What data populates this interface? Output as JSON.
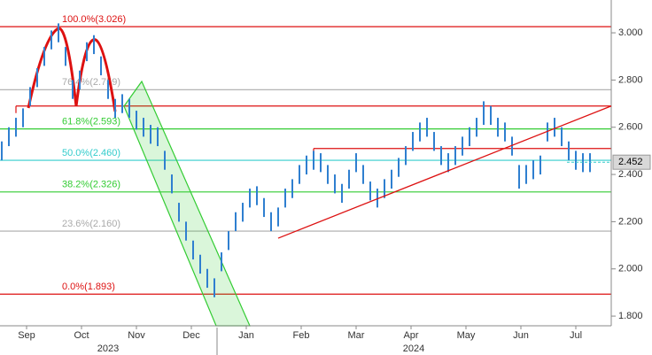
{
  "chart_data": {
    "type": "ohlc_bar",
    "color": "#2f7fd0",
    "categories": [
      "Sep",
      "Oct",
      "Nov",
      "Dec",
      "Jan",
      "Feb",
      "Mar",
      "Apr",
      "May",
      "Jun",
      "Jul"
    ],
    "years": [
      "2023",
      "2024"
    ],
    "high": [
      2.54,
      2.6,
      2.64,
      2.68,
      2.77,
      2.85,
      2.94,
      3.01,
      3.04,
      2.94,
      2.8,
      2.84,
      2.96,
      2.99,
      2.9,
      2.8,
      2.72,
      2.74,
      2.72,
      2.67,
      2.64,
      2.61,
      2.6,
      2.5,
      2.4,
      2.28,
      2.2,
      2.12,
      2.06,
      2.0,
      1.96,
      2.07,
      2.16,
      2.24,
      2.28,
      2.34,
      2.35,
      2.3,
      2.24,
      2.26,
      2.34,
      2.38,
      2.44,
      2.48,
      2.5,
      2.49,
      2.44,
      2.4,
      2.36,
      2.42,
      2.49,
      2.44,
      2.37,
      2.34,
      2.38,
      2.42,
      2.47,
      2.52,
      2.58,
      2.62,
      2.64,
      2.58,
      2.52,
      2.49,
      2.52,
      2.56,
      2.6,
      2.64,
      2.71,
      2.69,
      2.64,
      2.62,
      2.56,
      2.44,
      2.44,
      2.46,
      2.48,
      2.62,
      2.64,
      2.6,
      2.54,
      2.5,
      2.49,
      2.49
    ],
    "low": [
      2.46,
      2.52,
      2.56,
      2.6,
      2.69,
      2.77,
      2.86,
      2.93,
      2.96,
      2.86,
      2.72,
      2.76,
      2.88,
      2.91,
      2.82,
      2.72,
      2.64,
      2.66,
      2.64,
      2.59,
      2.56,
      2.53,
      2.52,
      2.42,
      2.32,
      2.2,
      2.12,
      2.04,
      1.98,
      1.92,
      1.88,
      1.99,
      2.08,
      2.16,
      2.2,
      2.26,
      2.27,
      2.22,
      2.16,
      2.18,
      2.26,
      2.3,
      2.36,
      2.4,
      2.42,
      2.41,
      2.36,
      2.32,
      2.28,
      2.34,
      2.41,
      2.36,
      2.29,
      2.26,
      2.3,
      2.34,
      2.39,
      2.44,
      2.5,
      2.54,
      2.56,
      2.5,
      2.44,
      2.41,
      2.44,
      2.48,
      2.52,
      2.56,
      2.61,
      2.61,
      2.56,
      2.54,
      2.48,
      2.34,
      2.36,
      2.38,
      2.4,
      2.54,
      2.56,
      2.52,
      2.46,
      2.42,
      2.41,
      2.41
    ],
    "ylim": [
      1.759,
      3.139
    ],
    "yticks": [
      {
        "value": 1.8,
        "label": "1.800"
      },
      {
        "value": 2.0,
        "label": "2.000"
      },
      {
        "value": 2.2,
        "label": "2.200"
      },
      {
        "value": 2.4,
        "label": "2.400"
      },
      {
        "value": 2.6,
        "label": "2.600"
      },
      {
        "value": 2.8,
        "label": "2.800"
      },
      {
        "value": 3.0,
        "label": "3.000"
      }
    ],
    "fib_levels": [
      {
        "label": "100.0%(3.026)",
        "value": 3.026,
        "color": "#dd1111"
      },
      {
        "label": "76.4%(2.759)",
        "value": 2.759,
        "color": "#aaaaaa"
      },
      {
        "label": "61.8%(2.593)",
        "value": 2.593,
        "color": "#33cc33"
      },
      {
        "label": "50.0%(2.460)",
        "value": 2.46,
        "color": "#33cccc"
      },
      {
        "label": "38.2%(2.326)",
        "value": 2.326,
        "color": "#33cc33"
      },
      {
        "label": "23.6%(2.160)",
        "value": 2.16,
        "color": "#aaaaaa"
      },
      {
        "label": "0.0%(1.893)",
        "value": 1.893,
        "color": "#dd1111"
      }
    ],
    "resistance_lines": [
      {
        "value": 2.69,
        "from_index": 2,
        "color": "#dd1111"
      },
      {
        "value": 2.51,
        "from_index": 44,
        "color": "#dd1111"
      }
    ],
    "trendline": {
      "from_index": 39,
      "from_value": 2.13,
      "to_index": 86,
      "to_value": 2.69,
      "color": "#dd1111"
    },
    "last_price": {
      "value": 2.452,
      "label": "2.452"
    }
  }
}
